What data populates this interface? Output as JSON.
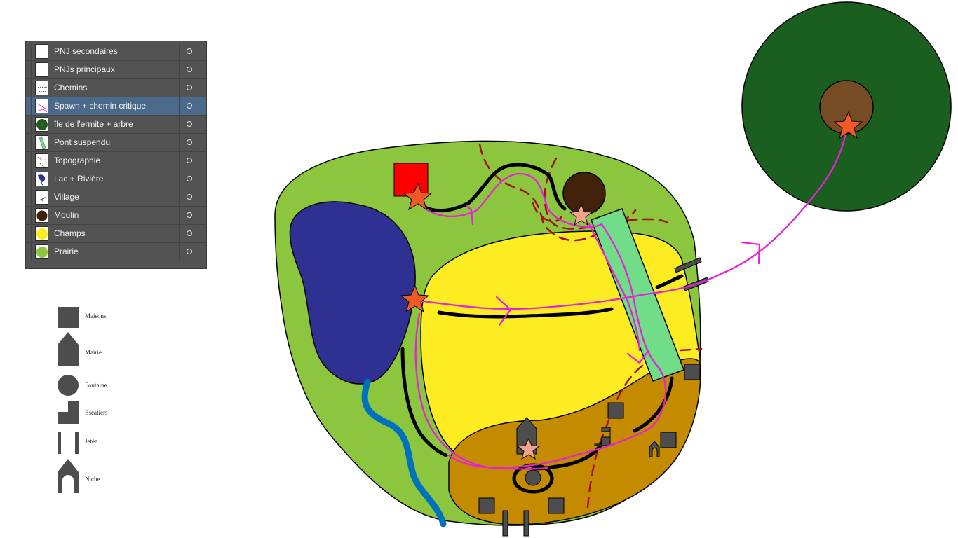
{
  "layers": [
    {
      "name": "PNJ secondaires",
      "thumb": "blank-thumb",
      "visible": true
    },
    {
      "name": "PNJs principaux",
      "thumb": "blank-thumb",
      "visible": true
    },
    {
      "name": "Chemins",
      "thumb": "paths-thumb",
      "visible": true
    },
    {
      "name": "Spawn + chemin critique",
      "thumb": "critical-path-thumb",
      "visible": true,
      "selected": true
    },
    {
      "name": "île de l'ermite + arbre",
      "thumb": "island-thumb",
      "visible": true
    },
    {
      "name": "Pont suspendu",
      "thumb": "bridge-thumb",
      "visible": true
    },
    {
      "name": "Topographie",
      "thumb": "topography-thumb",
      "visible": true
    },
    {
      "name": "Lac + Rivière",
      "thumb": "lake-thumb",
      "visible": true
    },
    {
      "name": "Village",
      "thumb": "village-thumb",
      "visible": true
    },
    {
      "name": "Moulin",
      "thumb": "mill-thumb",
      "visible": true
    },
    {
      "name": "Champs",
      "thumb": "fields-thumb",
      "visible": true
    },
    {
      "name": "Prairie",
      "thumb": "meadow-thumb",
      "visible": true
    }
  ],
  "legend": [
    {
      "label": "Maisons",
      "icon": "house-icon"
    },
    {
      "label": "Mairie",
      "icon": "town-hall-icon"
    },
    {
      "label": "Fontaine",
      "icon": "fountain-icon"
    },
    {
      "label": "Escaliers",
      "icon": "stairs-icon"
    },
    {
      "label": "Jetée",
      "icon": "jetty-icon"
    },
    {
      "label": "Niche",
      "icon": "niche-icon"
    }
  ],
  "colors": {
    "meadow": "#8cc63f",
    "field": "#fcec21",
    "village": "#c48a00",
    "lake": "#2e3192",
    "river": "#0071bc",
    "mill": "#42210b",
    "bridge": "#72dd88",
    "island": "#1a5e20",
    "tree": "#754c24",
    "critical_path": "#e622d8",
    "spawn_star": "#f15a24",
    "npc_star": "#f4a38c",
    "topography": "#a50f0f",
    "building": "#4d4d4d",
    "spawn_square": "#ff0000",
    "panel_bg": "#535353",
    "panel_selected": "#4b6a8b"
  }
}
